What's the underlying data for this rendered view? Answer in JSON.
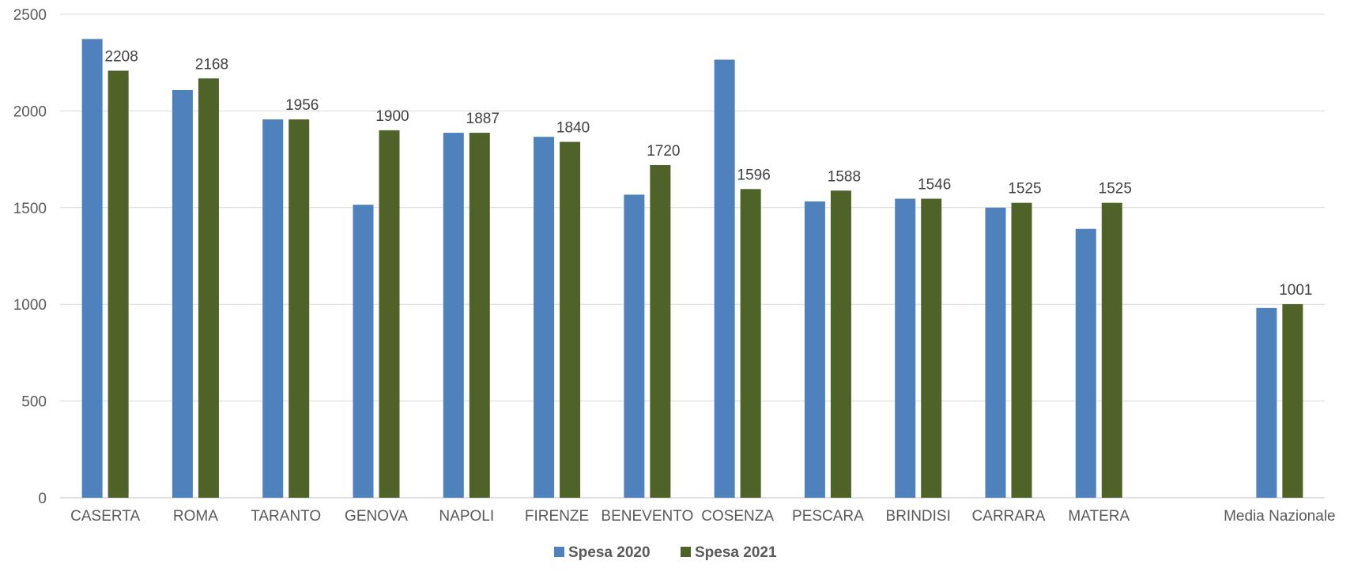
{
  "chart_data": {
    "type": "bar",
    "categories": [
      "CASERTA",
      "ROMA",
      "TARANTO",
      "GENOVA",
      "NAPOLI",
      "FIRENZE",
      "BENEVENTO",
      "COSENZA",
      "PESCARA",
      "BRINDISI",
      "CARRARA",
      "MATERA",
      "",
      "Media Nazionale"
    ],
    "series": [
      {
        "name": "Spesa 2020",
        "color": "#4F81BD",
        "values": [
          2372,
          2108,
          1956,
          1515,
          1887,
          1866,
          1567,
          2265,
          1532,
          1546,
          1500,
          1390,
          null,
          981
        ],
        "show_labels": false
      },
      {
        "name": "Spesa 2021",
        "color": "#4F6228",
        "values": [
          2208,
          2168,
          1956,
          1900,
          1887,
          1840,
          1720,
          1596,
          1588,
          1546,
          1525,
          1525,
          null,
          1001
        ],
        "show_labels": true
      }
    ],
    "y_ticks": [
      "0",
      "500",
      "1000",
      "1500",
      "2000",
      "2500"
    ],
    "ylim": [
      0,
      2500
    ],
    "grid": true,
    "legend_position": "bottom"
  }
}
